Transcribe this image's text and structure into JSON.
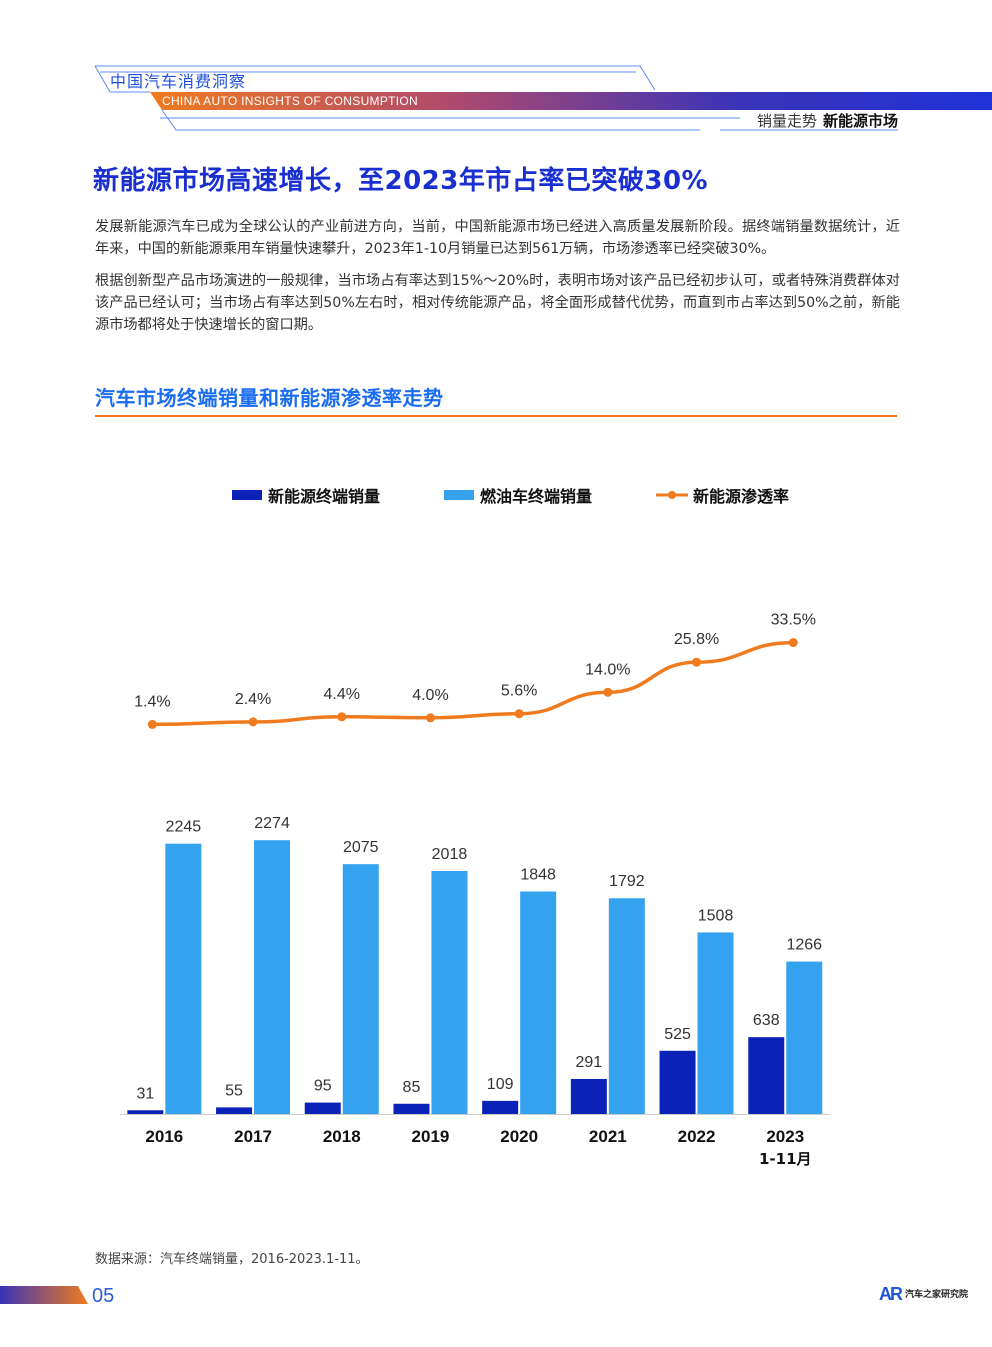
{
  "header": {
    "brand_title": "中国汽车消费洞察",
    "brand_subtitle": "CHINA AUTO INSIGHTS OF CONSUMPTION",
    "section_prefix": "销量走势",
    "section_name": "新能源市场"
  },
  "headline": "新能源市场高速增长，至2023年市占率已突破30%",
  "paragraphs": [
    "发展新能源汽车已成为全球公认的产业前进方向，当前，中国新能源市场已经进入高质量发展新阶段。据终端销量数据统计，近年来，中国的新能源乘用车销量快速攀升，2023年1-10月销量已达到561万辆，市场渗透率已经突破30%。",
    "根据创新型产品市场演进的一般规律，当市场占有率达到15%～20%时，表明市场对该产品已经初步认可，或者特殊消费群体对该产品已经认可；当市场占有率达到50%左右时，相对传统能源产品，将全面形成替代优势，而直到市占率达到50%之前，新能源市场都将处于快速增长的窗口期。"
  ],
  "chart_heading": "汽车市场终端销量和新能源渗透率走势",
  "chart_data": {
    "type": "bar",
    "categories": [
      "2016",
      "2017",
      "2018",
      "2019",
      "2020",
      "2021",
      "2022",
      "2023"
    ],
    "category_sublabels": [
      "",
      "",
      "",
      "",
      "",
      "",
      "",
      "1-11月"
    ],
    "series": [
      {
        "name": "新能源终端销量",
        "type": "bar",
        "color": "#0b22b8",
        "values": [
          31,
          55,
          95,
          85,
          109,
          291,
          525,
          638
        ]
      },
      {
        "name": "燃油车终端销量",
        "type": "bar",
        "color": "#35a2ef",
        "values": [
          2245,
          2274,
          2075,
          2018,
          1848,
          1792,
          1508,
          1266
        ]
      },
      {
        "name": "新能源渗透率",
        "type": "line",
        "color": "#f07b1e",
        "values": [
          1.4,
          2.4,
          4.4,
          4.0,
          5.6,
          14.0,
          25.8,
          33.5
        ],
        "labels": [
          "1.4%",
          "2.4%",
          "4.4%",
          "4.0%",
          "5.6%",
          "14.0%",
          "25.8%",
          "33.5%"
        ]
      }
    ],
    "legend_position": "top-center",
    "grid": false
  },
  "source": "数据来源：汽车终端销量，2016-2023.1-11。",
  "footer": {
    "page_number": "05",
    "logo_mark": "AR",
    "logo_text": "汽车之家研究院"
  }
}
